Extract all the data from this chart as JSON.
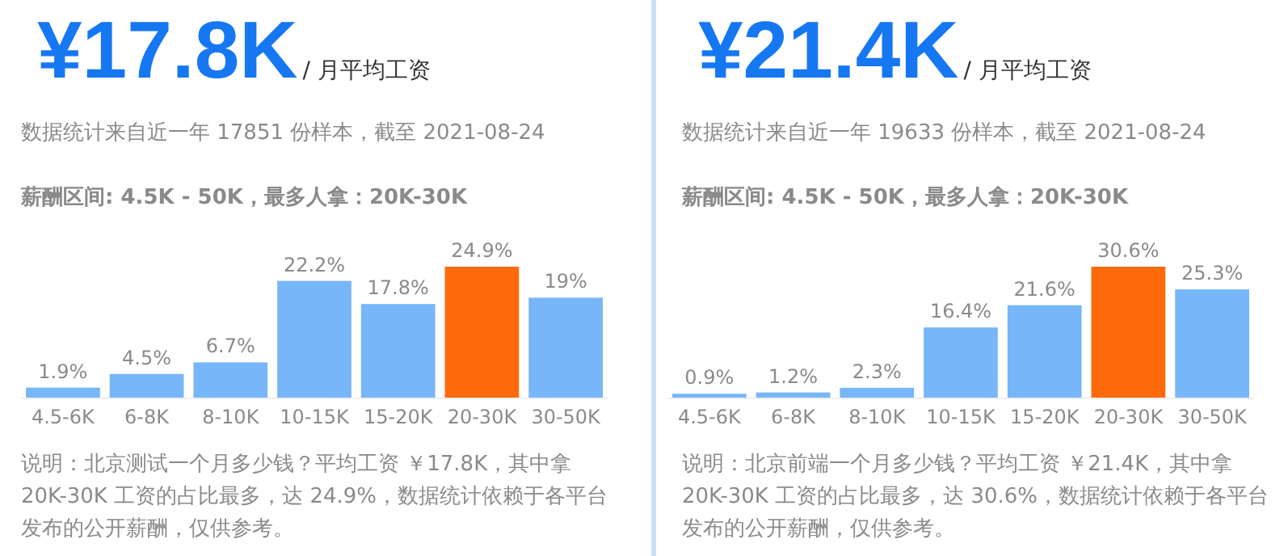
{
  "chart_data": [
    {
      "type": "bar",
      "title": "¥17.8K",
      "subtitle": "/ 月平均工资",
      "annotations": [
        "数据统计来自近一年 17851 份样本，截至 2021-08-24",
        "薪酬区间: 4.5K - 50K，最多人拿：20K-30K",
        "说明：北京测试一个月多少钱？平均工资 ￥17.8K，其中拿 20K-30K 工资的占比最多，达 24.9%，数据统计依赖于各平台发布的公开薪酬，仅供参考。"
      ],
      "categories": [
        "4.5-6K",
        "6-8K",
        "8-10K",
        "10-15K",
        "15-20K",
        "20-30K",
        "30-50K"
      ],
      "values": [
        1.9,
        4.5,
        6.7,
        22.2,
        17.8,
        24.9,
        19
      ],
      "value_labels": [
        "1.9%",
        "4.5%",
        "6.7%",
        "22.2%",
        "17.8%",
        "24.9%",
        "19%"
      ],
      "colors": [
        "#77b6f8",
        "#77b6f8",
        "#77b6f8",
        "#77b6f8",
        "#77b6f8",
        "#ff6a0d",
        "#77b6f8"
      ]
    },
    {
      "type": "bar",
      "title": "¥21.4K",
      "subtitle": "/ 月平均工资",
      "annotations": [
        "数据统计来自近一年 19633 份样本，截至 2021-08-24",
        "薪酬区间: 4.5K - 50K，最多人拿：20K-30K",
        "说明：北京前端一个月多少钱？平均工资 ￥21.4K，其中拿 20K-30K 工资的占比最多，达 30.6%，数据统计依赖于各平台发布的公开薪酬，仅供参考。"
      ],
      "categories": [
        "4.5-6K",
        "6-8K",
        "8-10K",
        "10-15K",
        "15-20K",
        "20-30K",
        "30-50K"
      ],
      "values": [
        0.9,
        1.2,
        2.3,
        16.4,
        21.6,
        30.6,
        25.3
      ],
      "value_labels": [
        "0.9%",
        "1.2%",
        "2.3%",
        "16.4%",
        "21.6%",
        "30.6%",
        "25.3%"
      ],
      "colors": [
        "#77b6f8",
        "#77b6f8",
        "#77b6f8",
        "#77b6f8",
        "#77b6f8",
        "#ff6a0d",
        "#77b6f8"
      ]
    }
  ]
}
